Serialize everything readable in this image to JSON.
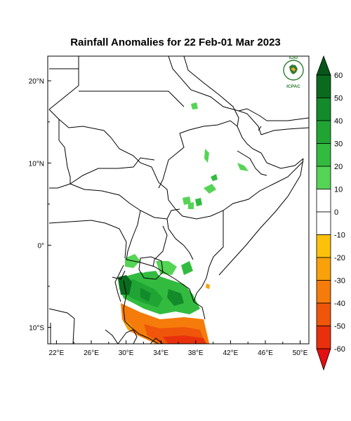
{
  "title": "Rainfall Anomalies for 22 Feb-01 Mar 2023",
  "logo": {
    "top_text": "IGAD",
    "bottom_text": "ICPAC",
    "primary_color": "#2e7d32",
    "accent_color": "#f9a825"
  },
  "map": {
    "lon_range": [
      21,
      51
    ],
    "lat_range": [
      -12,
      23
    ],
    "lat_ticks": [
      {
        "value": 20,
        "label": "20°N"
      },
      {
        "value": 10,
        "label": "10°N"
      },
      {
        "value": 0,
        "label": "0°"
      },
      {
        "value": -10,
        "label": "10°S"
      }
    ],
    "lon_ticks": [
      {
        "value": 22,
        "label": "22°E"
      },
      {
        "value": 26,
        "label": "26°E"
      },
      {
        "value": 30,
        "label": "30°E"
      },
      {
        "value": 34,
        "label": "34°E"
      },
      {
        "value": 38,
        "label": "38°E"
      },
      {
        "value": 42,
        "label": "42°E"
      },
      {
        "value": 46,
        "label": "46°E"
      },
      {
        "value": 50,
        "label": "50°E"
      }
    ]
  },
  "colorbar": {
    "labels": [
      "60",
      "50",
      "40",
      "30",
      "20",
      "10",
      "0",
      "-10",
      "-20",
      "-30",
      "-40",
      "-50",
      "-60"
    ],
    "colors": [
      "#0a6b1e",
      "#138b2a",
      "#20a534",
      "#33bb40",
      "#55d455",
      "#ffffff",
      "#ffffff",
      "#fcc20a",
      "#f9a10a",
      "#f57c0a",
      "#ef560a",
      "#e9300c"
    ],
    "top_arrow_color": "#06561a",
    "bottom_arrow_color": "#e30f10"
  }
}
